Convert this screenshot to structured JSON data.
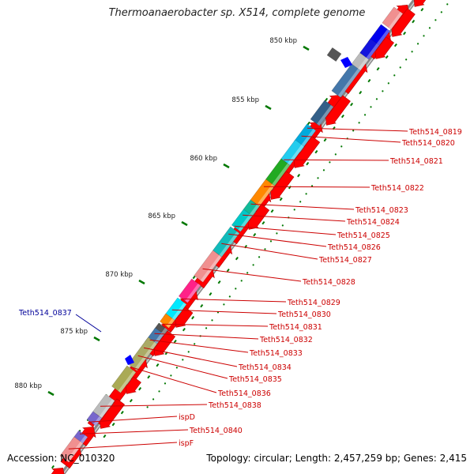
{
  "title": "Thermoanaerobacter sp. X514, complete genome",
  "accession": "Accession: NC_010320",
  "topology": "Topology: circular; Length: 2,457,259 bp; Genes: 2,415",
  "kbp_ticks": [
    "850 kbp",
    "855 kbp",
    "860 kbp",
    "865 kbp",
    "870 kbp",
    "875 kbp",
    "880 kbp"
  ],
  "gene_labels": [
    "Teth514_0819",
    "Teth514_0820",
    "Teth514_0821",
    "Teth514_0822",
    "Teth514_0823",
    "Teth514_0824",
    "Teth514_0825",
    "Teth514_0826",
    "Teth514_0827",
    "Teth514_0828",
    "Teth514_0829",
    "Teth514_0830",
    "Teth514_0831",
    "Teth514_0832",
    "Teth514_0833",
    "Teth514_0834",
    "Teth514_0835",
    "Teth514_0836",
    "Teth514_0838",
    "ispD",
    "Teth514_0840",
    "ispF"
  ],
  "left_labels": [
    "Teth514_0837"
  ],
  "colors": {
    "label_red": "#cc0000",
    "label_blue": "#000099",
    "gene_red": "#ff0000",
    "tick_green": "#007700",
    "backbone": "#999999"
  }
}
